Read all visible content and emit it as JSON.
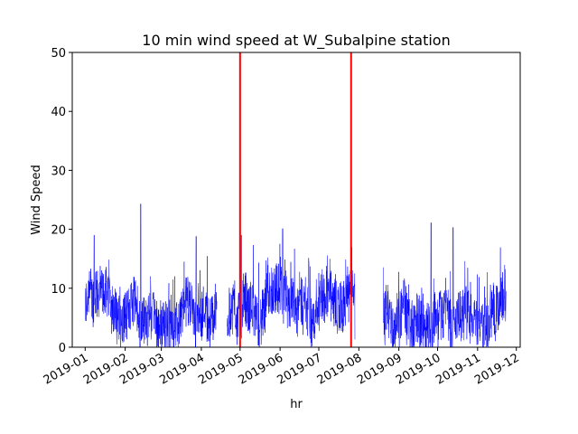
{
  "chart_data": {
    "type": "line",
    "title": "10 min wind speed at W_Subalpine station",
    "xlabel": "hr",
    "ylabel": "Wind Speed",
    "ylim": [
      0,
      50
    ],
    "xlim": [
      "2018-12-22",
      "2019-12-04"
    ],
    "yticks": [
      0,
      10,
      20,
      30,
      40,
      50
    ],
    "xticks": [
      "2019-01",
      "2019-02",
      "2019-03",
      "2019-04",
      "2019-05",
      "2019-06",
      "2019-07",
      "2019-08",
      "2019-09",
      "2019-10",
      "2019-11",
      "2019-12"
    ],
    "grid": false,
    "series": [
      {
        "color": "#0000ff",
        "segments": [
          {
            "start": "2019-01-01",
            "end": "2019-04-13",
            "range": [
              0,
              24.3
            ]
          },
          {
            "start": "2019-04-21",
            "end": "2019-07-29",
            "range": [
              0,
              20.1
            ]
          },
          {
            "start": "2019-08-20",
            "end": "2019-11-23",
            "range": [
              0,
              21.1
            ]
          }
        ],
        "peaks": [
          {
            "x": "2019-01-08",
            "y": 19.0
          },
          {
            "x": "2019-02-13",
            "y": 24.3
          },
          {
            "x": "2019-03-28",
            "y": 18.8
          },
          {
            "x": "2019-05-02",
            "y": 19.0
          },
          {
            "x": "2019-06-03",
            "y": 20.1
          },
          {
            "x": "2019-09-26",
            "y": 21.1
          },
          {
            "x": "2019-10-13",
            "y": 20.3
          }
        ]
      }
    ],
    "vlines": [
      {
        "x": "2019-05-01",
        "color": "#ff0000"
      },
      {
        "x": "2019-07-26",
        "color": "#ff0000"
      }
    ]
  }
}
